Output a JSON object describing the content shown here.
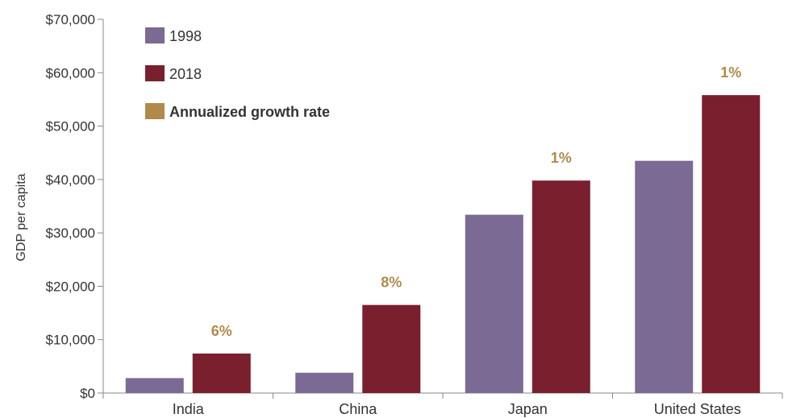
{
  "chart_data": {
    "type": "bar",
    "title": "",
    "xlabel": "",
    "ylabel": "GDP per capita",
    "ylim": [
      0,
      70000
    ],
    "yticks": [
      0,
      10000,
      20000,
      30000,
      40000,
      50000,
      60000,
      70000
    ],
    "ytick_labels": [
      "$0",
      "$10,000",
      "$20,000",
      "$30,000",
      "$40,000",
      "$50,000",
      "$60,000",
      "$70,000"
    ],
    "categories": [
      "India",
      "China",
      "Japan",
      "United States"
    ],
    "series": [
      {
        "name": "1998",
        "color": "#7b6a93",
        "values": [
          2800,
          3800,
          33400,
          43500
        ]
      },
      {
        "name": "2018",
        "color": "#7a1f2e",
        "values": [
          7400,
          16500,
          39800,
          55800
        ]
      }
    ],
    "annotations": {
      "name": "Annualized growth rate",
      "color": "#b08a4a",
      "labels": [
        "6%",
        "8%",
        "1%",
        "1%"
      ]
    },
    "legend_position": "top-left",
    "grid": false
  }
}
